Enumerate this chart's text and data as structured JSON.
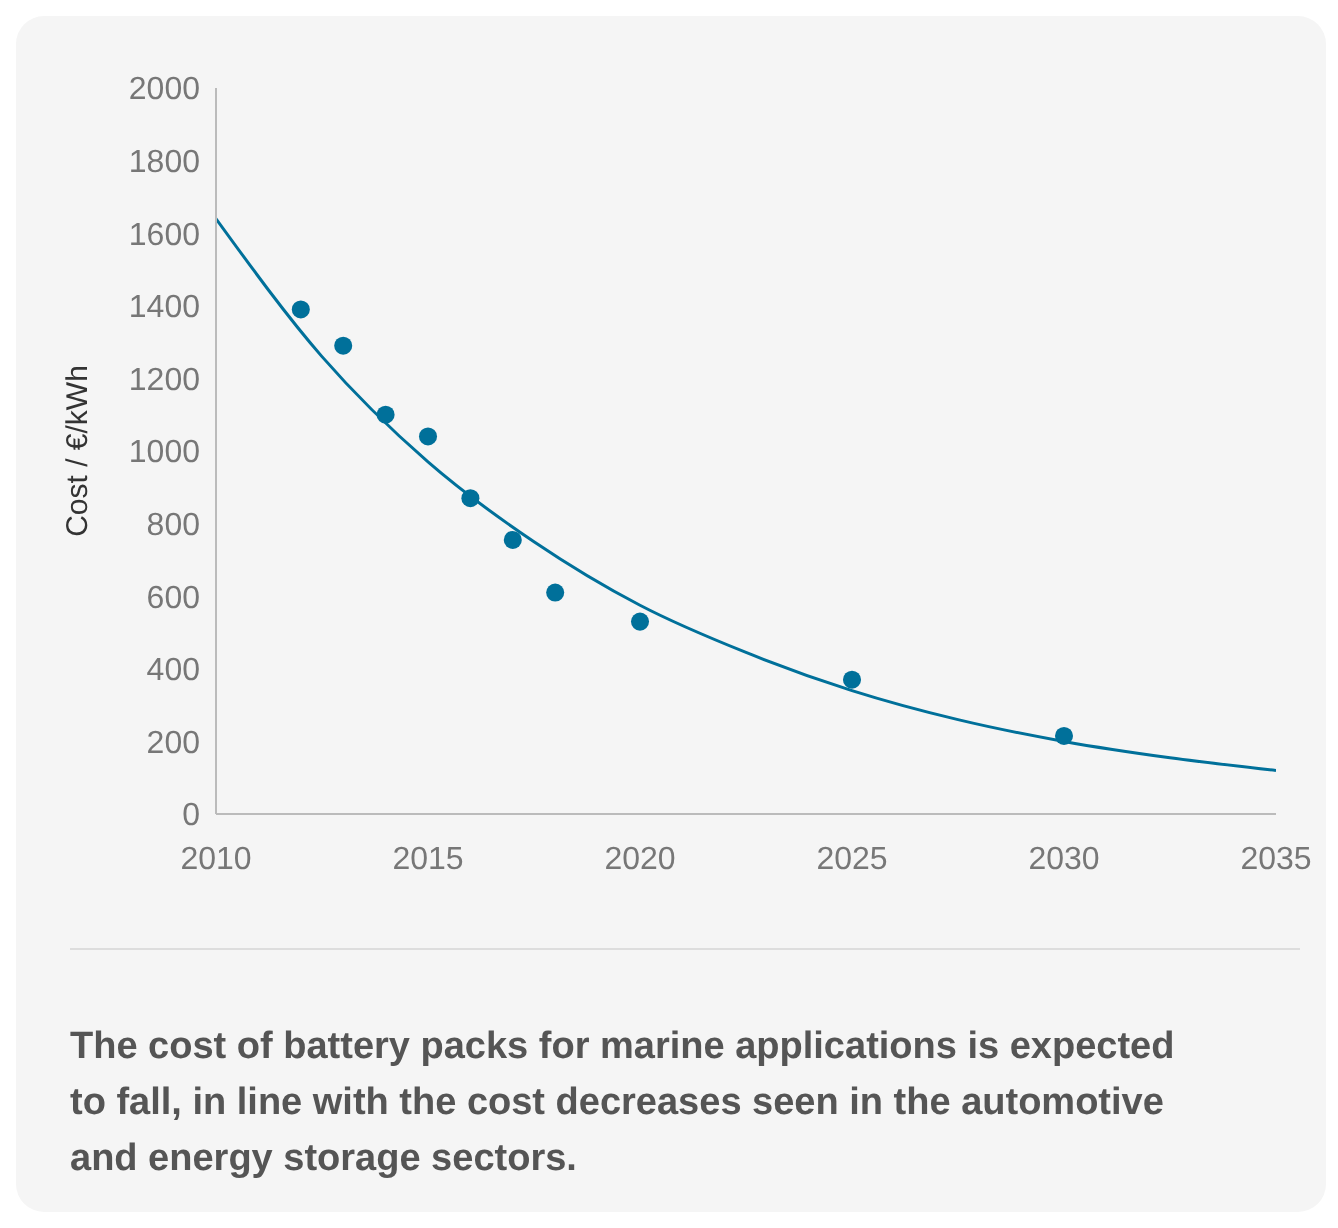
{
  "chart_data": {
    "type": "scatter",
    "ylabel": "Cost / €/kWh",
    "xlim": [
      2010,
      2035
    ],
    "xticks": [
      2010,
      2015,
      2020,
      2025,
      2030,
      2035
    ],
    "ylim": [
      0,
      2000
    ],
    "yticks": [
      0,
      200,
      400,
      600,
      800,
      1000,
      1200,
      1400,
      1600,
      1800,
      2000
    ],
    "grid": false,
    "legend": false,
    "series": [
      {
        "color": "#00709a",
        "marker": "circle",
        "x": [
          2012,
          2013,
          2014,
          2015,
          2016,
          2017,
          2018,
          2020,
          2025,
          2030
        ],
        "values": [
          1390,
          1290,
          1100,
          1040,
          870,
          755,
          610,
          530,
          370,
          215
        ]
      },
      {
        "type": "line",
        "color": "#00709a",
        "marker": "none",
        "line_style": "solid",
        "x": [
          2010,
          2012.5,
          2015,
          2017.5,
          2020,
          2022.5,
          2025,
          2027.5,
          2030,
          2032.5,
          2035
        ],
        "values": [
          1640,
          1260,
          970,
          750,
          575,
          445,
          340,
          260,
          200,
          155,
          120
        ]
      }
    ],
    "annotations": [
      "The cost of battery packs for marine applications is expected to fall, in line with the cost decreases seen in the automotive and energy storage sectors."
    ]
  }
}
